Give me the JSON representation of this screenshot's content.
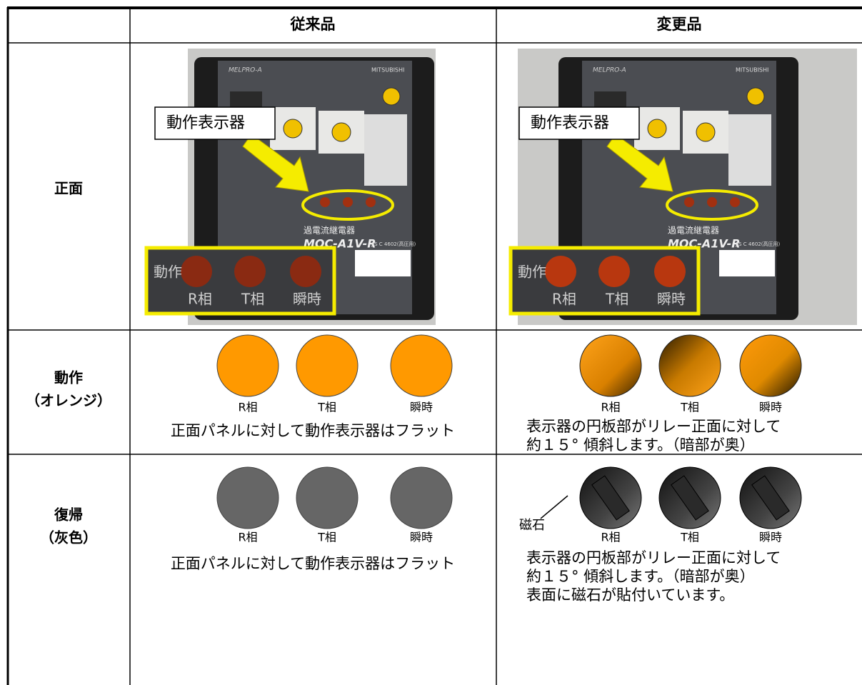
{
  "table": {
    "columns": [
      "従来品",
      "変更品"
    ],
    "front": {
      "label": "正面",
      "callout": "動作表示器",
      "photo_text": {
        "brand": "MELPRO-A",
        "maker": "MITSUBISHI",
        "product": "過電流継電器",
        "model": "MOC-A1V-R",
        "standard": "JIS C 4602(高圧用)"
      },
      "inset": [
        "動作",
        "R相",
        "T相",
        "瞬時"
      ]
    },
    "operate": {
      "label": "動作",
      "sublabel": "（オレンジ）",
      "indicators": [
        "R相",
        "T相",
        "瞬時"
      ],
      "old_note": "正面パネルに対して動作表示器はフラット",
      "new_note": [
        "表示器の円板部がリレー正面に対して",
        "約１５° 傾斜します。（暗部が奥）"
      ]
    },
    "reset": {
      "label": "復帰",
      "sublabel": "（灰色）",
      "indicators": [
        "R相",
        "T相",
        "瞬時"
      ],
      "magnet": "磁石",
      "old_note": "正面パネルに対して動作表示器はフラット",
      "new_note": [
        "表示器の円板部がリレー正面に対して",
        "約１５° 傾斜します。（暗部が奥）",
        "表面に磁石が貼付いています。"
      ]
    }
  }
}
